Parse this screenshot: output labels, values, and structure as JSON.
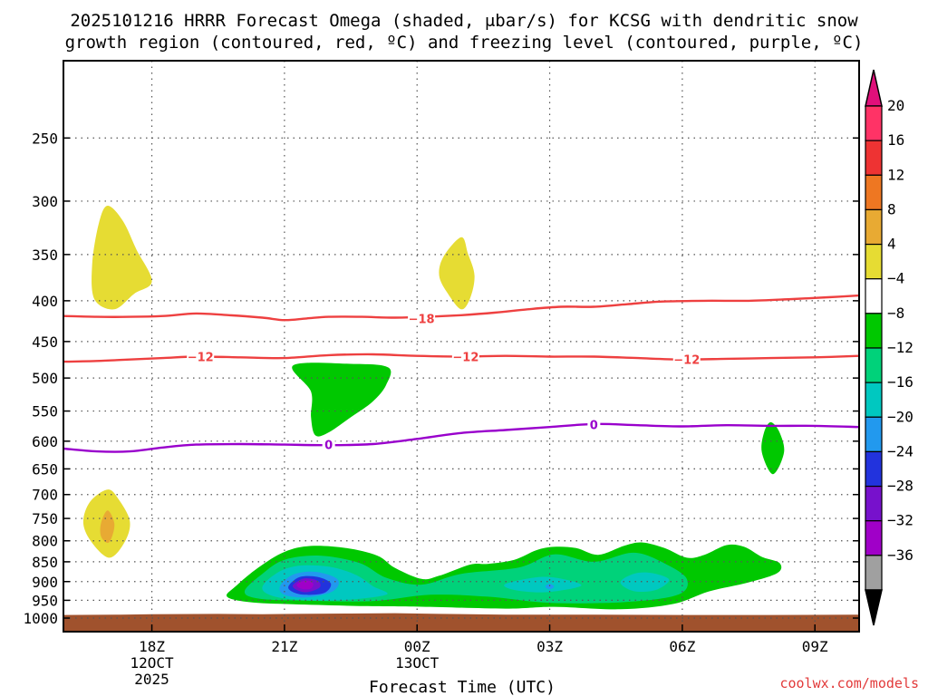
{
  "title_line1": "2025101216 HRRR Forecast Omega (shaded, μbar/s) for KCSG with dendritic snow",
  "title_line2": "growth region (contoured, red, ºC) and freezing level (contoured, purple, ºC)",
  "credit": "coolwx.com/models",
  "chart_data": {
    "type": "contour-timeseries",
    "title": "2025101216 HRRR Forecast Omega (shaded, μbar/s) for KCSG with dendritic snow growth region (contoured, red, ºC) and freezing level (contoured, purple, ºC)",
    "xlabel": "Forecast Time (UTC)",
    "ylabel": "",
    "x_range_hours_utc": [
      16,
      34
    ],
    "y_axis": "pressure_hPa",
    "y_log": true,
    "y_range": [
      200,
      1040
    ],
    "y_ticks": [
      250,
      300,
      350,
      400,
      450,
      500,
      550,
      600,
      650,
      700,
      750,
      800,
      850,
      900,
      950,
      1000
    ],
    "x_ticks": [
      {
        "label": "18Z",
        "sub1": "12OCT",
        "sub2": "2025"
      },
      {
        "label": "21Z",
        "sub1": "",
        "sub2": ""
      },
      {
        "label": "00Z",
        "sub1": "13OCT",
        "sub2": ""
      },
      {
        "label": "03Z",
        "sub1": "",
        "sub2": ""
      },
      {
        "label": "06Z",
        "sub1": "",
        "sub2": ""
      },
      {
        "label": "09Z",
        "sub1": "",
        "sub2": ""
      }
    ],
    "grid": true,
    "colorbar": {
      "labels": [
        "20",
        "16",
        "12",
        "8",
        "4",
        "−4",
        "−8",
        "−12",
        "−16",
        "−20",
        "−24",
        "−28",
        "−32",
        "−36"
      ],
      "colors": [
        "#FF3366",
        "#EE3333",
        "#EE7722",
        "#E8AA33",
        "#E6DC33",
        "#FFFFFF",
        "#00C800",
        "#00D27A",
        "#00C8C0",
        "#2299EE",
        "#2233DD",
        "#7711CC",
        "#A000C8",
        "#A0A0A0"
      ],
      "top_color": "#E0107A",
      "bottom_color": "#000000"
    },
    "contours": [
      {
        "name": "-18",
        "color": "#EE4040",
        "label": "−18",
        "points": [
          [
            16.0,
            418
          ],
          [
            16.75,
            419
          ],
          [
            17.5,
            419
          ],
          [
            18.25,
            418
          ],
          [
            19.0,
            415
          ],
          [
            19.75,
            417
          ],
          [
            20.5,
            420
          ],
          [
            21.0,
            423
          ],
          [
            21.5,
            421
          ],
          [
            22.0,
            419
          ],
          [
            22.75,
            419
          ],
          [
            23.5,
            420
          ],
          [
            24.25,
            419
          ],
          [
            25.0,
            417
          ],
          [
            25.75,
            414
          ],
          [
            26.5,
            410
          ],
          [
            27.25,
            407
          ],
          [
            28.0,
            407
          ],
          [
            28.75,
            404
          ],
          [
            29.5,
            401
          ],
          [
            30.5,
            400
          ],
          [
            31.5,
            400
          ],
          [
            32.5,
            398
          ],
          [
            33.3,
            396
          ],
          [
            34.0,
            394
          ]
        ]
      },
      {
        "name": "-12",
        "color": "#EE4040",
        "label": "−12",
        "points": [
          [
            16.0,
            477
          ],
          [
            16.75,
            476
          ],
          [
            17.5,
            474
          ],
          [
            18.25,
            472
          ],
          [
            19.0,
            470
          ],
          [
            20.0,
            471
          ],
          [
            21.0,
            472
          ],
          [
            22.0,
            468
          ],
          [
            23.0,
            467
          ],
          [
            24.0,
            469
          ],
          [
            25.0,
            470
          ],
          [
            26.0,
            469
          ],
          [
            27.0,
            470
          ],
          [
            28.0,
            470
          ],
          [
            29.0,
            472
          ],
          [
            30.0,
            474
          ],
          [
            31.0,
            473
          ],
          [
            32.0,
            472
          ],
          [
            33.0,
            471
          ],
          [
            34.0,
            469
          ]
        ]
      },
      {
        "name": "0",
        "color": "#9900CC",
        "label": "0",
        "points": [
          [
            16.0,
            613
          ],
          [
            16.75,
            618
          ],
          [
            17.5,
            618
          ],
          [
            18.25,
            611
          ],
          [
            19.0,
            606
          ],
          [
            20.0,
            605
          ],
          [
            21.0,
            606
          ],
          [
            22.0,
            607
          ],
          [
            23.0,
            605
          ],
          [
            24.0,
            596
          ],
          [
            25.0,
            586
          ],
          [
            26.0,
            581
          ],
          [
            27.0,
            576
          ],
          [
            28.0,
            571
          ],
          [
            29.0,
            573
          ],
          [
            30.0,
            575
          ],
          [
            31.0,
            573
          ],
          [
            32.0,
            574
          ],
          [
            33.0,
            574
          ],
          [
            34.0,
            576
          ]
        ]
      }
    ],
    "contour_labels": [
      {
        "series": "-18",
        "x": 24.1,
        "y": 421
      },
      {
        "series": "-12",
        "x": 19.1,
        "y": 470
      },
      {
        "series": "-12",
        "x": 25.1,
        "y": 470
      },
      {
        "series": "-12",
        "x": 30.1,
        "y": 474
      },
      {
        "series": "0",
        "x": 22.0,
        "y": 606
      },
      {
        "series": "0",
        "x": 28.0,
        "y": 572
      }
    ],
    "omega_regions": [
      {
        "value": 4,
        "color": "#E6DC33",
        "points": [
          [
            17.0,
            304
          ],
          [
            17.35,
            318
          ],
          [
            17.65,
            345
          ],
          [
            18.0,
            378
          ],
          [
            17.6,
            392
          ],
          [
            17.15,
            410
          ],
          [
            16.7,
            398
          ],
          [
            16.65,
            360
          ],
          [
            16.8,
            320
          ]
        ]
      },
      {
        "value": 4,
        "color": "#E6DC33",
        "points": [
          [
            25.0,
            333
          ],
          [
            25.15,
            349
          ],
          [
            25.3,
            372
          ],
          [
            25.2,
            397
          ],
          [
            25.0,
            410
          ],
          [
            24.7,
            392
          ],
          [
            24.5,
            372
          ],
          [
            24.6,
            352
          ]
        ]
      },
      {
        "value": 4,
        "color": "#E6DC33",
        "points": [
          [
            17.0,
            690
          ],
          [
            17.25,
            710
          ],
          [
            17.5,
            755
          ],
          [
            17.4,
            800
          ],
          [
            17.05,
            840
          ],
          [
            16.65,
            805
          ],
          [
            16.45,
            760
          ],
          [
            16.6,
            715
          ]
        ]
      },
      {
        "value": 8,
        "color": "#E8AA33",
        "points": [
          [
            17.0,
            733
          ],
          [
            17.15,
            760
          ],
          [
            17.1,
            790
          ],
          [
            17.0,
            805
          ],
          [
            16.85,
            790
          ],
          [
            16.85,
            760
          ]
        ]
      },
      {
        "value": -4,
        "color": "#00C800",
        "points": [
          [
            21.2,
            482
          ],
          [
            22.5,
            480
          ],
          [
            23.35,
            485
          ],
          [
            23.3,
            510
          ],
          [
            23.0,
            535
          ],
          [
            22.5,
            560
          ],
          [
            22.0,
            585
          ],
          [
            21.7,
            590
          ],
          [
            21.6,
            560
          ],
          [
            21.6,
            520
          ]
        ]
      },
      {
        "value": -4,
        "color": "#00C800",
        "points": [
          [
            32.0,
            568
          ],
          [
            32.2,
            585
          ],
          [
            32.3,
            620
          ],
          [
            32.05,
            660
          ],
          [
            31.8,
            620
          ],
          [
            31.85,
            585
          ]
        ]
      },
      {
        "value": -4,
        "color": "#00C800",
        "points": [
          [
            19.7,
            940
          ],
          [
            19.9,
            912
          ],
          [
            20.4,
            865
          ],
          [
            21.0,
            826
          ],
          [
            21.6,
            812
          ],
          [
            22.4,
            817
          ],
          [
            23.1,
            835
          ],
          [
            23.5,
            865
          ],
          [
            24.1,
            893
          ],
          [
            24.5,
            885
          ],
          [
            25.2,
            857
          ],
          [
            25.6,
            855
          ],
          [
            26.2,
            845
          ],
          [
            26.7,
            822
          ],
          [
            27.1,
            814
          ],
          [
            27.6,
            817
          ],
          [
            28.1,
            833
          ],
          [
            28.7,
            811
          ],
          [
            29.1,
            804
          ],
          [
            29.6,
            817
          ],
          [
            30.1,
            840
          ],
          [
            30.5,
            833
          ],
          [
            31.0,
            810
          ],
          [
            31.4,
            814
          ],
          [
            31.8,
            838
          ],
          [
            32.2,
            853
          ],
          [
            32.15,
            878
          ],
          [
            31.5,
            902
          ],
          [
            30.6,
            926
          ],
          [
            29.8,
            960
          ],
          [
            28.6,
            975
          ],
          [
            27.1,
            968
          ],
          [
            26.0,
            973
          ],
          [
            24.2,
            968
          ],
          [
            22.8,
            966
          ],
          [
            21.2,
            961
          ],
          [
            20.2,
            955
          ]
        ]
      },
      {
        "value": -8,
        "color": "#00D27A",
        "points": [
          [
            20.1,
            925
          ],
          [
            20.5,
            880
          ],
          [
            21.0,
            845
          ],
          [
            21.8,
            835
          ],
          [
            22.7,
            853
          ],
          [
            23.3,
            890
          ],
          [
            24.1,
            908
          ],
          [
            25.0,
            880
          ],
          [
            26.3,
            864
          ],
          [
            27.1,
            832
          ],
          [
            28.0,
            850
          ],
          [
            28.9,
            828
          ],
          [
            29.6,
            854
          ],
          [
            30.1,
            893
          ],
          [
            29.9,
            935
          ],
          [
            28.7,
            955
          ],
          [
            27.0,
            957
          ],
          [
            25.6,
            940
          ],
          [
            24.3,
            935
          ],
          [
            23.0,
            952
          ],
          [
            21.4,
            951
          ],
          [
            20.4,
            945
          ]
        ]
      },
      {
        "value": -12,
        "color": "#00C8C0",
        "points": [
          [
            20.5,
            920
          ],
          [
            20.8,
            880
          ],
          [
            21.3,
            860
          ],
          [
            22.0,
            862
          ],
          [
            22.6,
            882
          ],
          [
            23.0,
            912
          ],
          [
            23.3,
            935
          ],
          [
            22.2,
            950
          ],
          [
            21.0,
            945
          ]
        ]
      },
      {
        "value": -12,
        "color": "#00C8C0",
        "points": [
          [
            26.0,
            906
          ],
          [
            26.8,
            888
          ],
          [
            27.4,
            896
          ],
          [
            27.7,
            912
          ],
          [
            26.9,
            928
          ],
          [
            26.2,
            922
          ]
        ]
      },
      {
        "value": -12,
        "color": "#00C8C0",
        "points": [
          [
            28.6,
            902
          ],
          [
            28.9,
            880
          ],
          [
            29.3,
            878
          ],
          [
            29.7,
            895
          ],
          [
            29.4,
            922
          ],
          [
            28.9,
            925
          ]
        ]
      },
      {
        "value": -16,
        "color": "#2299EE",
        "points": [
          [
            20.9,
            912
          ],
          [
            21.2,
            882
          ],
          [
            21.7,
            875
          ],
          [
            22.2,
            894
          ],
          [
            22.1,
            925
          ],
          [
            21.5,
            942
          ],
          [
            21.0,
            935
          ]
        ]
      },
      {
        "value": -16,
        "color": "#2299EE",
        "points": [
          [
            26.9,
            913
          ],
          [
            27.0,
            906
          ],
          [
            27.1,
            913
          ],
          [
            27.0,
            920
          ]
        ]
      },
      {
        "value": -20,
        "color": "#2233DD",
        "points": [
          [
            21.1,
            910
          ],
          [
            21.35,
            888
          ],
          [
            21.75,
            888
          ],
          [
            22.05,
            905
          ],
          [
            21.9,
            930
          ],
          [
            21.45,
            935
          ],
          [
            21.15,
            925
          ]
        ]
      },
      {
        "value": -24,
        "color": "#7711CC",
        "points": [
          [
            21.2,
            908
          ],
          [
            21.45,
            892
          ],
          [
            21.75,
            898
          ],
          [
            21.8,
            915
          ],
          [
            21.5,
            928
          ],
          [
            21.25,
            920
          ]
        ]
      },
      {
        "value": -28,
        "color": "#A000C8",
        "points": [
          [
            21.3,
            905
          ],
          [
            21.5,
            897
          ],
          [
            21.65,
            905
          ],
          [
            21.6,
            918
          ],
          [
            21.45,
            920
          ],
          [
            21.3,
            914
          ]
        ]
      }
    ],
    "terrain_color": "#A0522D",
    "terrain_top": [
      [
        16.0,
        991
      ],
      [
        17.3,
        990
      ],
      [
        18.0,
        989
      ],
      [
        19.5,
        988
      ],
      [
        20.5,
        989
      ],
      [
        21.2,
        988
      ],
      [
        22.5,
        987
      ],
      [
        23.5,
        986
      ],
      [
        24.5,
        988
      ],
      [
        26.0,
        990
      ],
      [
        28.0,
        990
      ],
      [
        30.0,
        991
      ],
      [
        32.0,
        991
      ],
      [
        34.0,
        990
      ]
    ]
  }
}
